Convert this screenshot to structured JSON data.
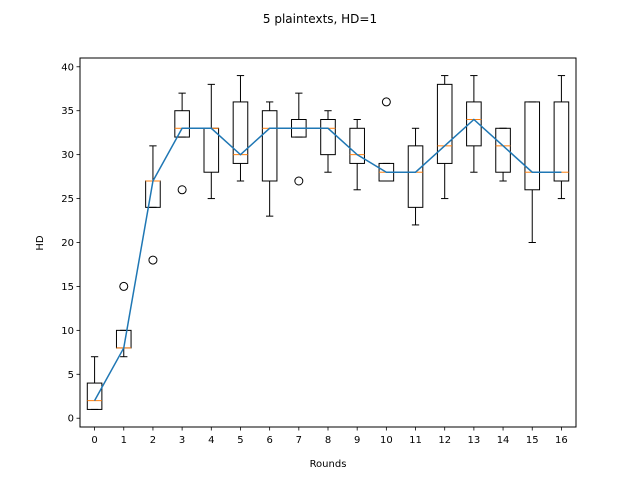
{
  "chart_data": {
    "type": "box",
    "title": "5 plaintexts, HD=1",
    "xlabel": "Rounds",
    "ylabel": "HD",
    "ylim": [
      -1,
      41
    ],
    "yticks": [
      0,
      5,
      10,
      15,
      20,
      25,
      30,
      35,
      40
    ],
    "categories": [
      "0",
      "1",
      "2",
      "3",
      "4",
      "5",
      "6",
      "7",
      "8",
      "9",
      "10",
      "11",
      "12",
      "13",
      "14",
      "15",
      "16"
    ],
    "box_color": "#000000",
    "median_color": "#ff7f0e",
    "line_color": "#1f77b4",
    "boxes": [
      {
        "whislo": 1,
        "q1": 1,
        "med": 2,
        "q3": 4,
        "whishi": 7,
        "fliers": []
      },
      {
        "whislo": 7,
        "q1": 8,
        "med": 8,
        "q3": 10,
        "whishi": 10,
        "fliers": [
          15
        ]
      },
      {
        "whislo": 24,
        "q1": 24,
        "med": 27,
        "q3": 27,
        "whishi": 31,
        "fliers": [
          18
        ]
      },
      {
        "whislo": 32,
        "q1": 32,
        "med": 33,
        "q3": 35,
        "whishi": 37,
        "fliers": [
          26
        ]
      },
      {
        "whislo": 25,
        "q1": 28,
        "med": 33,
        "q3": 33,
        "whishi": 38,
        "fliers": []
      },
      {
        "whislo": 27,
        "q1": 29,
        "med": 30,
        "q3": 36,
        "whishi": 39,
        "fliers": []
      },
      {
        "whislo": 23,
        "q1": 27,
        "med": 33,
        "q3": 35,
        "whishi": 36,
        "fliers": []
      },
      {
        "whislo": 32,
        "q1": 32,
        "med": 33,
        "q3": 34,
        "whishi": 37,
        "fliers": [
          27
        ]
      },
      {
        "whislo": 28,
        "q1": 30,
        "med": 33,
        "q3": 34,
        "whishi": 35,
        "fliers": []
      },
      {
        "whislo": 26,
        "q1": 29,
        "med": 30,
        "q3": 33,
        "whishi": 34,
        "fliers": []
      },
      {
        "whislo": 27,
        "q1": 27,
        "med": 28,
        "q3": 29,
        "whishi": 29,
        "fliers": [
          36
        ]
      },
      {
        "whislo": 22,
        "q1": 24,
        "med": 28,
        "q3": 31,
        "whishi": 33,
        "fliers": []
      },
      {
        "whislo": 25,
        "q1": 29,
        "med": 31,
        "q3": 38,
        "whishi": 39,
        "fliers": []
      },
      {
        "whislo": 28,
        "q1": 31,
        "med": 34,
        "q3": 36,
        "whishi": 39,
        "fliers": []
      },
      {
        "whislo": 27,
        "q1": 28,
        "med": 31,
        "q3": 33,
        "whishi": 33,
        "fliers": []
      },
      {
        "whislo": 20,
        "q1": 26,
        "med": 28,
        "q3": 36,
        "whishi": 36,
        "fliers": []
      },
      {
        "whislo": 25,
        "q1": 27,
        "med": 28,
        "q3": 36,
        "whishi": 39,
        "fliers": []
      }
    ],
    "median_line": [
      2,
      8,
      27,
      33,
      33,
      30,
      33,
      33,
      33,
      30,
      28,
      28,
      31,
      34,
      31,
      28,
      28
    ]
  }
}
